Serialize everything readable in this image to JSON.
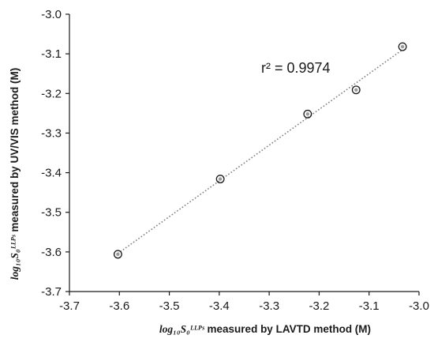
{
  "chart_data": {
    "type": "scatter",
    "x_label_math": "log₁₀S₀ᴸᴸᴾˢ",
    "x_label_text": "measured by LAVTD method (M)",
    "y_label_math": "log₁₀S₀ᴸᴸᴾˢ",
    "y_label_text": "measured by UV/VIS method (M)",
    "xlim": [
      -3.7,
      -3.0
    ],
    "ylim": [
      -3.7,
      -3.0
    ],
    "x_ticks": [
      "-3.7",
      "-3.6",
      "-3.5",
      "-3.4",
      "-3.3",
      "-3.2",
      "-3.1",
      "-3.0"
    ],
    "y_ticks": [
      "-3.0",
      "-3.1",
      "-3.2",
      "-3.3",
      "-3.4",
      "-3.5",
      "-3.6",
      "-3.7"
    ],
    "points": [
      {
        "x": -3.603,
        "y": -3.606
      },
      {
        "x": -3.398,
        "y": -3.416
      },
      {
        "x": -3.223,
        "y": -3.252
      },
      {
        "x": -3.126,
        "y": -3.191
      },
      {
        "x": -3.033,
        "y": -3.082
      }
    ],
    "trendline": {
      "style": "dotted",
      "x_range": [
        -3.603,
        -3.033
      ]
    },
    "annotation": "r² = 0.9974",
    "grid": false,
    "legend": "none",
    "colors": {
      "marker": "#1a1a1a",
      "trendline": "#808080",
      "axis": "#1a1a1a"
    }
  }
}
